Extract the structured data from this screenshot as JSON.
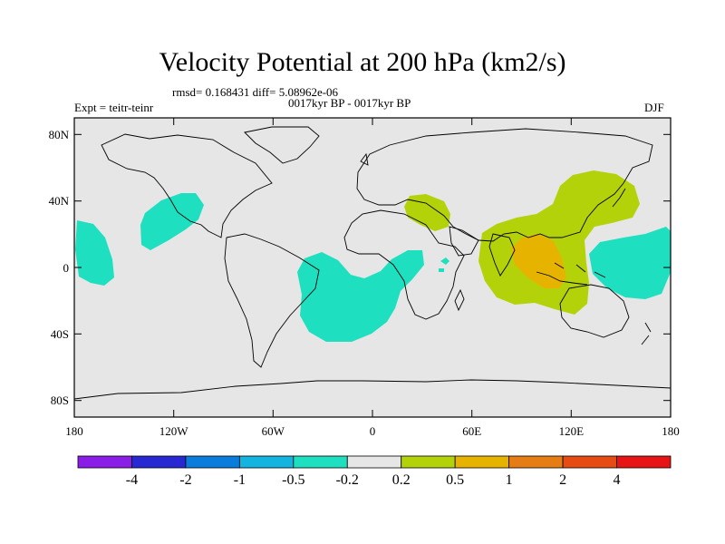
{
  "title": "Velocity Potential at 200 hPa (km2/s)",
  "stats": "rmsd= 0.168431  diff= 5.08962e-06",
  "left_label": "Expt = teitr-teinr",
  "center_label": "0017kyr BP - 0017kyr BP",
  "right_label": "DJF",
  "y_ticks": [
    "80N",
    "40N",
    "0",
    "40S",
    "80S"
  ],
  "x_ticks": [
    "180",
    "120W",
    "60W",
    "0",
    "60E",
    "120E",
    "180"
  ],
  "colorbar": {
    "labels": [
      "-4",
      "-2",
      "-1",
      "-0.5",
      "-0.2",
      "0.2",
      "0.5",
      "1",
      "2",
      "4"
    ],
    "colors": [
      "#8a1ee6",
      "#2828d2",
      "#0a7ddc",
      "#14b4e0",
      "#1ee0c0",
      "#e6e6e6",
      "#b4d20a",
      "#e6b400",
      "#e67d14",
      "#e64b14",
      "#e61414"
    ]
  },
  "colors": {
    "ocean": "#e6e6e6",
    "neg_light": "#1ee0c0",
    "pos_light": "#b4d20a",
    "pos_mid": "#e6b400"
  }
}
